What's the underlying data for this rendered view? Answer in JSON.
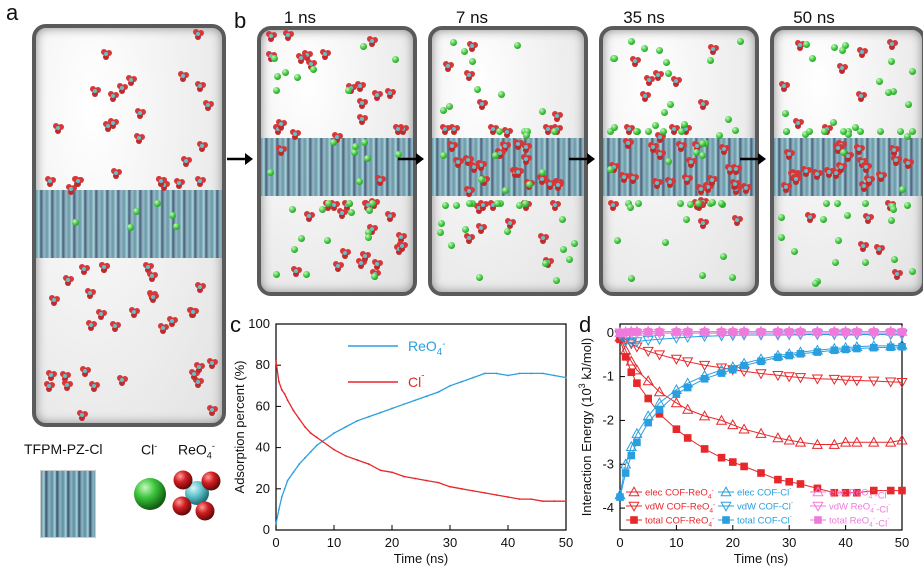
{
  "panels": {
    "a": "a",
    "b": "b",
    "c": "c",
    "d": "d"
  },
  "times": [
    "1 ns",
    "7 ns",
    "35 ns",
    "50 ns"
  ],
  "legend_a": {
    "cof": "TFPM-PZ-Cl",
    "cl": "Cl",
    "cl_sup": "-",
    "reo4": "ReO",
    "reo4_sub": "4",
    "reo4_sup": "-"
  },
  "colors": {
    "reo4_blue": "#2a9fe0",
    "cl_red": "#e8272a",
    "pink": "#f07adc",
    "green_ion": "#3cc63c",
    "re_oxy": "#d6383a"
  },
  "chart_data": [
    {
      "type": "line",
      "panel": "c",
      "xlabel": "Time (ns)",
      "ylabel": "Adsorption percent (%)",
      "xlim": [
        0,
        50
      ],
      "ylim": [
        0,
        100
      ],
      "xticks": [
        0,
        10,
        20,
        30,
        40,
        50
      ],
      "yticks": [
        0,
        20,
        40,
        60,
        80,
        100
      ],
      "legend_placement": "top-right",
      "series": [
        {
          "name": "ReO4-",
          "label": "ReO",
          "sub": "4",
          "sup": "-",
          "color": "#2a9fe0",
          "x": [
            0,
            0.5,
            1,
            1.5,
            2,
            3,
            4,
            5,
            6,
            7,
            8,
            10,
            12,
            14,
            16,
            18,
            20,
            22,
            24,
            26,
            28,
            30,
            32,
            34,
            36,
            38,
            40,
            42,
            44,
            46,
            48,
            50
          ],
          "y": [
            3,
            10,
            16,
            20,
            24,
            28,
            32,
            35,
            38,
            41,
            43,
            47,
            50,
            53,
            55,
            57,
            59,
            61,
            63,
            65,
            67,
            70,
            72,
            74,
            76,
            76,
            75,
            76,
            76,
            76,
            75,
            74
          ]
        },
        {
          "name": "Cl-",
          "label": "Cl",
          "sub": "",
          "sup": "-",
          "color": "#e8272a",
          "x": [
            0,
            0.5,
            1,
            1.5,
            2,
            3,
            4,
            5,
            6,
            7,
            8,
            10,
            12,
            14,
            16,
            18,
            20,
            22,
            24,
            26,
            28,
            30,
            32,
            34,
            36,
            38,
            40,
            42,
            44,
            46,
            48,
            50
          ],
          "y": [
            82,
            72,
            68,
            66,
            63,
            58,
            54,
            50,
            47,
            45,
            43,
            39,
            36,
            34,
            32,
            29,
            28,
            26,
            25,
            24,
            23,
            21,
            20,
            19,
            18,
            17,
            16,
            15,
            15,
            14,
            14,
            14
          ]
        }
      ]
    },
    {
      "type": "line",
      "panel": "d",
      "xlabel": "Time (ns)",
      "ylabel_main": "Interaction Energy (10",
      "ylabel_sup": "3",
      "ylabel_tail": " kJ/mol)",
      "xlim": [
        0,
        50
      ],
      "ylim": [
        -4.5,
        0.2
      ],
      "xticks": [
        0,
        10,
        20,
        30,
        40,
        50
      ],
      "yticks": [
        0,
        -1,
        -2,
        -3,
        -4
      ],
      "legend_placement": "bottom",
      "x": [
        0,
        1,
        2,
        3,
        5,
        7,
        10,
        12,
        15,
        18,
        20,
        22,
        25,
        28,
        30,
        32,
        35,
        38,
        40,
        42,
        45,
        48,
        50
      ],
      "series": [
        {
          "name": "elec COF-ReO4-",
          "pre": "elec COF-ReO",
          "sub": "4",
          "sup": "-",
          "color": "#e8272a",
          "marker": "tri-up",
          "y": [
            -0.1,
            -0.4,
            -0.65,
            -0.85,
            -1.1,
            -1.35,
            -1.6,
            -1.75,
            -1.9,
            -2.0,
            -2.1,
            -2.2,
            -2.3,
            -2.4,
            -2.45,
            -2.5,
            -2.55,
            -2.55,
            -2.5,
            -2.5,
            -2.5,
            -2.5,
            -2.45
          ]
        },
        {
          "name": "vdW COF-ReO4-",
          "pre": "vdW COF-ReO",
          "sub": "4",
          "sup": "-",
          "color": "#e8272a",
          "marker": "tri-down",
          "y": [
            -0.05,
            -0.15,
            -0.25,
            -0.32,
            -0.42,
            -0.5,
            -0.6,
            -0.66,
            -0.74,
            -0.8,
            -0.84,
            -0.88,
            -0.93,
            -0.97,
            -1.0,
            -1.02,
            -1.05,
            -1.06,
            -1.08,
            -1.09,
            -1.1,
            -1.12,
            -1.13
          ]
        },
        {
          "name": "total COF-ReO4-",
          "pre": "total COF-ReO",
          "sub": "4",
          "sup": "-",
          "color": "#e8272a",
          "marker": "square",
          "y": [
            -0.15,
            -0.55,
            -0.9,
            -1.15,
            -1.5,
            -1.85,
            -2.2,
            -2.4,
            -2.65,
            -2.85,
            -2.95,
            -3.05,
            -3.2,
            -3.35,
            -3.4,
            -3.45,
            -3.55,
            -3.65,
            -3.65,
            -3.65,
            -3.6,
            -3.6,
            -3.6
          ]
        },
        {
          "name": "elec COF-Cl-",
          "pre": "elec COF-Cl",
          "sub": "",
          "sup": "-",
          "color": "#2a9fe0",
          "marker": "tri-up",
          "y": [
            -3.7,
            -3.0,
            -2.6,
            -2.3,
            -1.9,
            -1.6,
            -1.3,
            -1.15,
            -0.98,
            -0.85,
            -0.78,
            -0.7,
            -0.6,
            -0.52,
            -0.48,
            -0.44,
            -0.4,
            -0.36,
            -0.34,
            -0.32,
            -0.3,
            -0.3,
            -0.28
          ]
        },
        {
          "name": "vdW COF-Cl-",
          "pre": "vdW COF-Cl",
          "sub": "",
          "sup": "-",
          "color": "#2a9fe0",
          "marker": "tri-down",
          "y": [
            -0.05,
            -0.2,
            -0.22,
            -0.2,
            -0.17,
            -0.15,
            -0.12,
            -0.1,
            -0.08,
            -0.07,
            -0.06,
            -0.05,
            -0.05,
            -0.05,
            -0.04,
            -0.04,
            -0.04,
            -0.04,
            -0.04,
            -0.04,
            -0.04,
            -0.04,
            -0.04
          ]
        },
        {
          "name": "total COF-Cl-",
          "pre": "total COF-Cl",
          "sub": "",
          "sup": "-",
          "color": "#2a9fe0",
          "marker": "square",
          "y": [
            -3.75,
            -3.2,
            -2.8,
            -2.5,
            -2.05,
            -1.75,
            -1.4,
            -1.25,
            -1.05,
            -0.92,
            -0.84,
            -0.75,
            -0.65,
            -0.56,
            -0.52,
            -0.48,
            -0.44,
            -0.4,
            -0.38,
            -0.36,
            -0.34,
            -0.33,
            -0.32
          ]
        },
        {
          "name": "elec ReO4--Cl-",
          "pre": "elec ReO",
          "sub": "4",
          "sup": "-",
          "post": "-Cl",
          "post_sup": "-",
          "color": "#f07adc",
          "marker": "tri-up",
          "y": [
            0.0,
            0.02,
            0.03,
            0.03,
            0.03,
            0.03,
            0.03,
            0.03,
            0.03,
            0.03,
            0.03,
            0.03,
            0.03,
            0.03,
            0.03,
            0.03,
            0.03,
            0.03,
            0.03,
            0.03,
            0.03,
            0.03,
            0.03
          ]
        },
        {
          "name": "vdW ReO4--Cl-",
          "pre": "vdW ReO",
          "sub": "4",
          "sup": "-",
          "post": "-Cl",
          "post_sup": "-",
          "color": "#f07adc",
          "marker": "tri-down",
          "y": [
            0.0,
            -0.01,
            -0.01,
            -0.01,
            -0.01,
            -0.01,
            -0.01,
            -0.01,
            -0.01,
            -0.01,
            -0.01,
            -0.01,
            -0.01,
            -0.01,
            -0.01,
            -0.01,
            -0.01,
            -0.01,
            -0.01,
            -0.01,
            -0.01,
            -0.01,
            -0.01
          ]
        },
        {
          "name": "total ReO4--Cl-",
          "pre": "total ReO",
          "sub": "4",
          "sup": "-",
          "post": "-Cl",
          "post_sup": "-",
          "color": "#f07adc",
          "marker": "square",
          "y": [
            0.0,
            0.01,
            0.02,
            0.02,
            0.02,
            0.02,
            0.02,
            0.02,
            0.02,
            0.02,
            0.02,
            0.02,
            0.02,
            0.02,
            0.02,
            0.02,
            0.02,
            0.02,
            0.02,
            0.02,
            0.02,
            0.02,
            0.02
          ]
        }
      ]
    }
  ]
}
